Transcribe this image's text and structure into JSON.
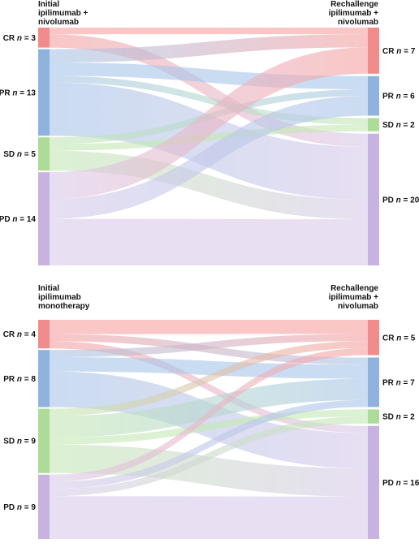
{
  "chart_data": [
    {
      "type": "sankey",
      "left_header": [
        "Initial",
        "ipilimumab +",
        "nivolumab"
      ],
      "right_header": [
        "Rechallenge",
        "ipilimumab +",
        "nivolumab"
      ],
      "left_nodes": [
        {
          "code": "CR",
          "n": 3,
          "label": "CR",
          "n_label": "n = 3"
        },
        {
          "code": "PR",
          "n": 13,
          "label": "PR",
          "n_label": "n = 13"
        },
        {
          "code": "SD",
          "n": 5,
          "label": "SD",
          "n_label": "n = 5"
        },
        {
          "code": "PD",
          "n": 14,
          "label": "PD",
          "n_label": "n = 14"
        }
      ],
      "right_nodes": [
        {
          "code": "CR",
          "n": 7,
          "label": "CR",
          "n_label": "n = 7"
        },
        {
          "code": "PR",
          "n": 6,
          "label": "PR",
          "n_label": "n = 6"
        },
        {
          "code": "SD",
          "n": 2,
          "label": "SD",
          "n_label": "n = 2"
        },
        {
          "code": "PD",
          "n": 20,
          "label": "PD",
          "n_label": "n = 20"
        }
      ],
      "flows": [
        {
          "from": "CR",
          "to": "CR",
          "value": 1
        },
        {
          "from": "CR",
          "to": "PD",
          "value": 2
        },
        {
          "from": "PR",
          "to": "CR",
          "value": 2
        },
        {
          "from": "PR",
          "to": "PR",
          "value": 2
        },
        {
          "from": "PR",
          "to": "SD",
          "value": 1
        },
        {
          "from": "PR",
          "to": "PD",
          "value": 8
        },
        {
          "from": "SD",
          "to": "PR",
          "value": 1
        },
        {
          "from": "SD",
          "to": "SD",
          "value": 1
        },
        {
          "from": "SD",
          "to": "PD",
          "value": 3
        },
        {
          "from": "PD",
          "to": "CR",
          "value": 4
        },
        {
          "from": "PD",
          "to": "PR",
          "value": 3
        },
        {
          "from": "PD",
          "to": "PD",
          "value": 7
        }
      ]
    },
    {
      "type": "sankey",
      "left_header": [
        "Initial",
        "ipilimumab",
        "monotherapy"
      ],
      "right_header": [
        "Rechallenge",
        "ipilimumab +",
        "nivolumab"
      ],
      "left_nodes": [
        {
          "code": "CR",
          "n": 4,
          "label": "CR",
          "n_label": "n = 4"
        },
        {
          "code": "PR",
          "n": 8,
          "label": "PR",
          "n_label": "n = 8"
        },
        {
          "code": "SD",
          "n": 9,
          "label": "SD",
          "n_label": "n = 9"
        },
        {
          "code": "PD",
          "n": 9,
          "label": "PD",
          "n_label": "n = 9"
        }
      ],
      "right_nodes": [
        {
          "code": "CR",
          "n": 5,
          "label": "CR",
          "n_label": "n = 5"
        },
        {
          "code": "PR",
          "n": 7,
          "label": "PR",
          "n_label": "n = 7"
        },
        {
          "code": "SD",
          "n": 2,
          "label": "SD",
          "n_label": "n = 2"
        },
        {
          "code": "PD",
          "n": 16,
          "label": "PD",
          "n_label": "n = 16"
        }
      ],
      "flows": [
        {
          "from": "CR",
          "to": "CR",
          "value": 2
        },
        {
          "from": "CR",
          "to": "PR",
          "value": 1
        },
        {
          "from": "CR",
          "to": "PD",
          "value": 1
        },
        {
          "from": "PR",
          "to": "CR",
          "value": 1
        },
        {
          "from": "PR",
          "to": "PR",
          "value": 2
        },
        {
          "from": "PR",
          "to": "PD",
          "value": 5
        },
        {
          "from": "SD",
          "to": "CR",
          "value": 1
        },
        {
          "from": "SD",
          "to": "PR",
          "value": 3
        },
        {
          "from": "SD",
          "to": "SD",
          "value": 1
        },
        {
          "from": "SD",
          "to": "PD",
          "value": 4
        },
        {
          "from": "PD",
          "to": "CR",
          "value": 1
        },
        {
          "from": "PD",
          "to": "PR",
          "value": 1
        },
        {
          "from": "PD",
          "to": "SD",
          "value": 1
        },
        {
          "from": "PD",
          "to": "PD",
          "value": 6
        }
      ]
    }
  ],
  "colors": {
    "CR": "#f6a3a3",
    "PR": "#a9c6e8",
    "SD": "#c5e8b5",
    "PD": "#dacbea",
    "CR_bar": "#f08c8c",
    "PR_bar": "#8fb3de",
    "SD_bar": "#acdc98",
    "PD_bar": "#c8b2e0"
  }
}
